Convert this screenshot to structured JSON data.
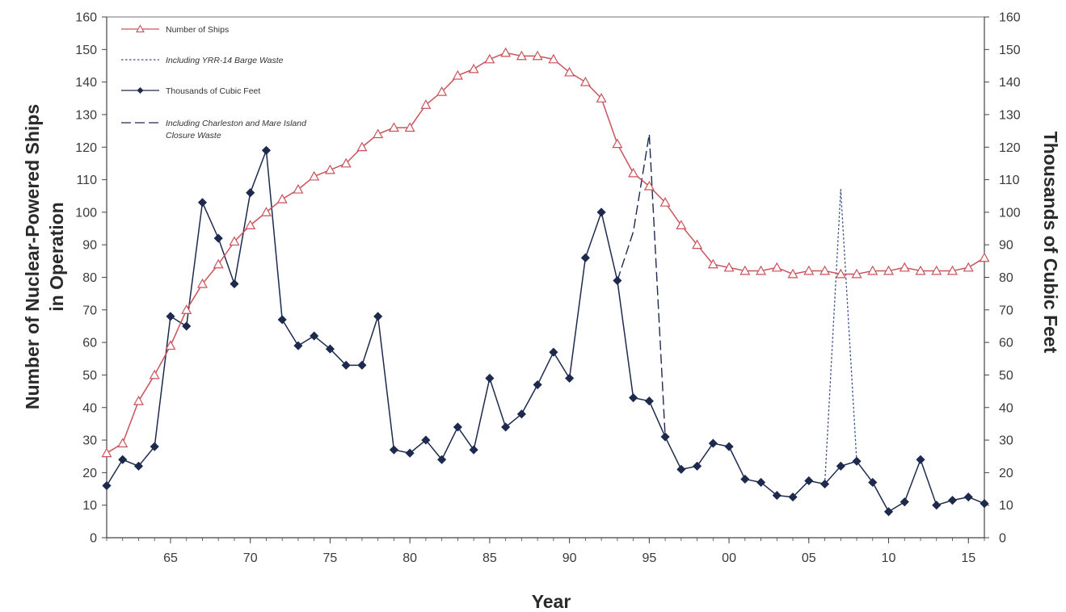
{
  "colors": {
    "ships": "#c9535b",
    "waste": "#1d2a4d",
    "axis": "#444444"
  },
  "chart_data": {
    "type": "line",
    "title": "",
    "xlabel": "Year",
    "ylabel_left": [
      "Number of Nuclear-Powered Ships",
      "in Operation"
    ],
    "ylabel_right": "Thousands of Cubic Feet",
    "xlim": [
      1961,
      2016
    ],
    "ylim": [
      0,
      160
    ],
    "y_ticks": [
      0,
      10,
      20,
      30,
      40,
      50,
      60,
      70,
      80,
      90,
      100,
      110,
      120,
      130,
      140,
      150,
      160
    ],
    "x_ticks": [
      {
        "value": 1965,
        "label": "65"
      },
      {
        "value": 1970,
        "label": "70"
      },
      {
        "value": 1975,
        "label": "75"
      },
      {
        "value": 1980,
        "label": "80"
      },
      {
        "value": 1985,
        "label": "85"
      },
      {
        "value": 1990,
        "label": "90"
      },
      {
        "value": 1995,
        "label": "95"
      },
      {
        "value": 2000,
        "label": "00"
      },
      {
        "value": 2005,
        "label": "05"
      },
      {
        "value": 2010,
        "label": "10"
      },
      {
        "value": 2015,
        "label": "15"
      }
    ],
    "legend_position": "top-left",
    "series": [
      {
        "name": "Number of Ships",
        "axis": "left",
        "marker": "triangle",
        "x": [
          1961,
          1962,
          1963,
          1964,
          1965,
          1966,
          1967,
          1968,
          1969,
          1970,
          1971,
          1972,
          1973,
          1974,
          1975,
          1976,
          1977,
          1978,
          1979,
          1980,
          1981,
          1982,
          1983,
          1984,
          1985,
          1986,
          1987,
          1988,
          1989,
          1990,
          1991,
          1992,
          1993,
          1994,
          1995,
          1996,
          1997,
          1998,
          1999,
          2000,
          2001,
          2002,
          2003,
          2004,
          2005,
          2006,
          2007,
          2008,
          2009,
          2010,
          2011,
          2012,
          2013,
          2014,
          2015,
          2016
        ],
        "y": [
          26,
          29,
          42,
          50,
          59,
          70,
          78,
          84,
          91,
          96,
          100,
          104,
          107,
          111,
          113,
          115,
          120,
          124,
          126,
          126,
          133,
          137,
          142,
          144,
          147,
          149,
          148,
          148,
          147,
          143,
          140,
          135,
          121,
          112,
          108,
          103,
          96,
          90,
          84,
          83,
          82,
          82,
          83,
          81,
          82,
          82,
          81,
          81,
          82,
          82,
          83,
          82,
          82,
          82,
          83,
          86
        ]
      },
      {
        "name": "Including YRR-14 Barge Waste",
        "axis": "right",
        "marker": "none",
        "line_style": "dotted",
        "x": [
          2006,
          2007,
          2008
        ],
        "y": [
          16.5,
          107,
          23.5
        ]
      },
      {
        "name": "Thousands of Cubic Feet",
        "axis": "right",
        "marker": "diamond",
        "x": [
          1961,
          1962,
          1963,
          1964,
          1965,
          1966,
          1967,
          1968,
          1969,
          1970,
          1971,
          1972,
          1973,
          1974,
          1975,
          1976,
          1977,
          1978,
          1979,
          1980,
          1981,
          1982,
          1983,
          1984,
          1985,
          1986,
          1987,
          1988,
          1989,
          1990,
          1991,
          1992,
          1993,
          1994,
          1995,
          1996,
          1997,
          1998,
          1999,
          2000,
          2001,
          2002,
          2003,
          2004,
          2005,
          2006,
          2007,
          2008,
          2009,
          2010,
          2011,
          2012,
          2013,
          2014,
          2015,
          2016
        ],
        "y": [
          16,
          24,
          22,
          28,
          68,
          65,
          103,
          92,
          78,
          106,
          119,
          67,
          59,
          62,
          58,
          53,
          53,
          68,
          27,
          26,
          30,
          24,
          34,
          27,
          49,
          34,
          38,
          47,
          57,
          49,
          86,
          100,
          79,
          43,
          42,
          31,
          21,
          22,
          29,
          28,
          18,
          17,
          13,
          12.5,
          17.5,
          16.5,
          22,
          23.5,
          17,
          8,
          11,
          24,
          10,
          11.5,
          12.5,
          10.5
        ]
      },
      {
        "name": "Including Charleston and Mare Island Closure Waste",
        "axis": "right",
        "marker": "none",
        "line_style": "dashed",
        "x": [
          1993,
          1994,
          1995,
          1996
        ],
        "y": [
          79,
          94,
          124,
          31
        ]
      }
    ]
  },
  "legend": [
    {
      "key": "ships",
      "label": "Number of Ships",
      "italic": false
    },
    {
      "key": "yrr",
      "label": "Including YRR-14 Barge Waste",
      "italic": true
    },
    {
      "key": "waste",
      "label": "Thousands of Cubic Feet",
      "italic": false
    },
    {
      "key": "closure",
      "label_lines": [
        "Including Charleston and Mare Island",
        "Closure Waste"
      ],
      "italic": true
    }
  ]
}
